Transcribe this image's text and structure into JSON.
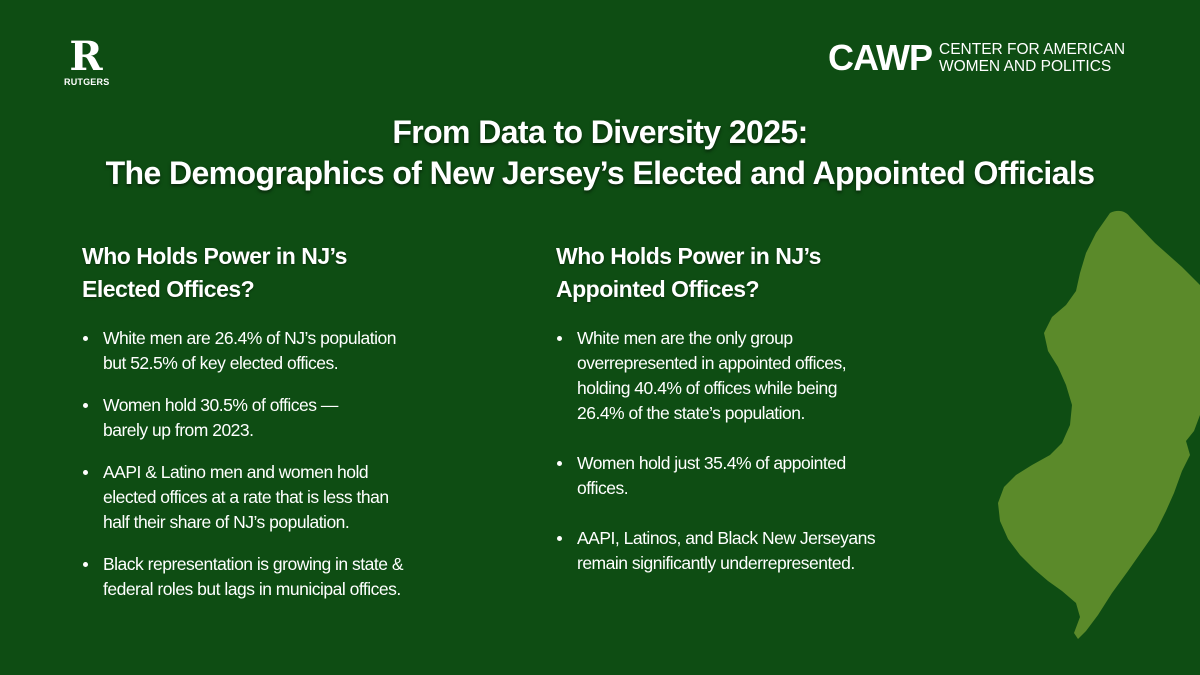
{
  "colors": {
    "background": "#0e4d13",
    "map_fill": "#5b8a2a",
    "text": "#ffffff"
  },
  "logos": {
    "rutgers": {
      "mark": "R",
      "word": "RUTGERS"
    },
    "cawp": {
      "mark": "CAWP",
      "line1": "CENTER FOR AMERICAN",
      "line2": "WOMEN AND POLITICS"
    }
  },
  "title": {
    "line1": "From Data to Diversity 2025:",
    "line2": "The Demographics of New Jersey’s Elected and Appointed Officials"
  },
  "map": {
    "icon": "new-jersey-map"
  },
  "elected": {
    "heading_line1": "Who Holds Power in NJ’s",
    "heading_line2": "Elected Offices?",
    "bullets": [
      {
        "lines": [
          "White men are 26.4% of NJ’s population",
          "but 52.5% of key elected offices."
        ]
      },
      {
        "lines": [
          "Women hold 30.5% of offices —",
          "barely up from 2023."
        ]
      },
      {
        "lines": [
          "AAPI & Latino men and women hold",
          "elected offices at a rate that is less than",
          "half their share of NJ’s population."
        ]
      },
      {
        "lines": [
          "Black representation is growing in state &",
          "federal roles but lags in municipal offices."
        ]
      }
    ]
  },
  "appointed": {
    "heading_line1": "Who Holds Power in NJ’s",
    "heading_line2": "Appointed Offices?",
    "bullets": [
      {
        "lines": [
          "White men are the only group",
          "overrepresented in appointed offices,",
          "holding 40.4% of offices while being",
          "26.4% of the state’s population."
        ]
      },
      {
        "lines": [
          "Women hold just 35.4% of appointed",
          "offices."
        ]
      },
      {
        "lines": [
          "AAPI, Latinos, and Black New Jerseyans",
          "remain significantly underrepresented."
        ]
      }
    ]
  }
}
